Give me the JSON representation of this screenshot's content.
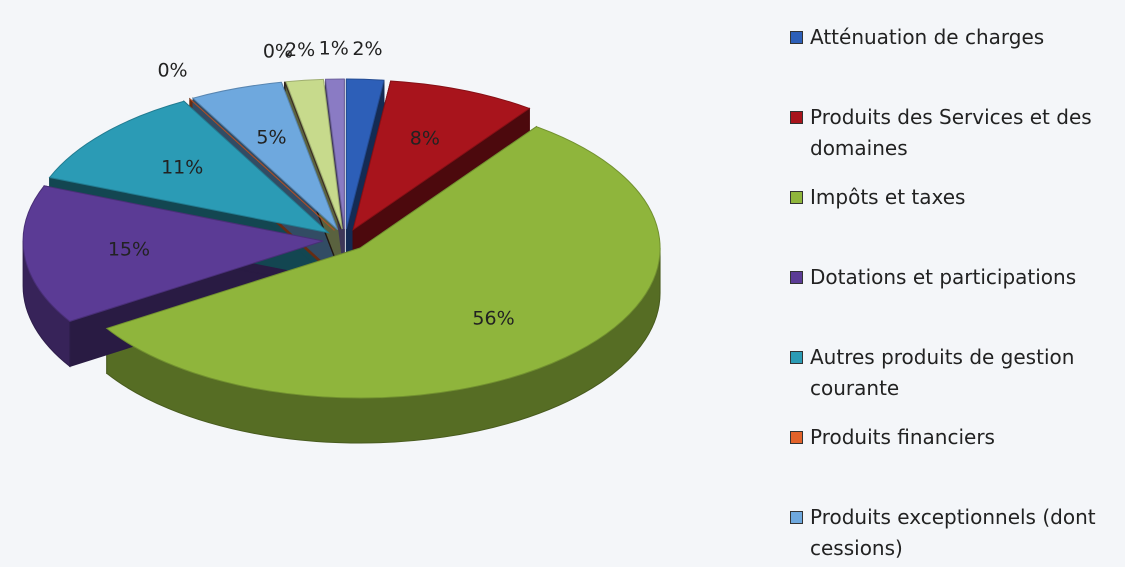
{
  "chart_data": {
    "type": "pie",
    "categories": [
      "Atténuation de charges",
      "Produits des Services et des domaines",
      "Impôts et taxes",
      "Dotations et participations",
      "Autres produits de gestion courante",
      "Produits financiers",
      "Produits exceptionnels (dont cessions)",
      null,
      null,
      null
    ],
    "values": [
      2,
      8,
      56,
      15,
      11,
      0,
      5,
      0,
      2,
      1
    ],
    "value_labels": [
      "2%",
      "8%",
      "56%",
      "15%",
      "11%",
      "0%",
      "5%",
      "0%",
      "2%",
      "1%"
    ],
    "colors": [
      "#2d5fb8",
      "#a8141c",
      "#8fb53c",
      "#5b3b95",
      "#2b9bb5",
      "#e2622a",
      "#6ea8de",
      "#4a3528",
      "#c7da8c",
      "#8a7bc4"
    ]
  }
}
